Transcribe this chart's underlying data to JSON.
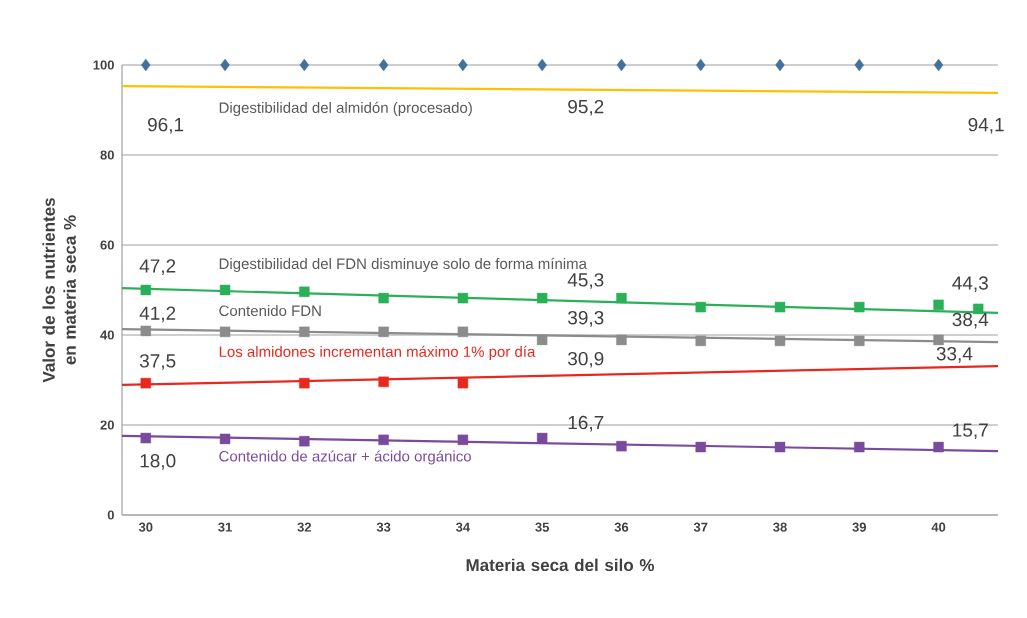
{
  "chart_data": {
    "type": "line",
    "xlabel": "Materia seca del silo %",
    "ylabel": "Valor de los nutrientes en materia seca %",
    "xlim": [
      29.7,
      40.75
    ],
    "xticks": [
      30,
      31,
      32,
      33,
      34,
      35,
      36,
      37,
      38,
      39,
      40
    ],
    "ylim": [
      0,
      100
    ],
    "yticks": [
      0,
      20,
      40,
      60,
      80,
      100
    ],
    "grid": "y",
    "series": [
      {
        "type": "scatter",
        "marker": "diamond",
        "color": "#41719c",
        "x": [
          30,
          31,
          32,
          33,
          34,
          35,
          36,
          37,
          38,
          39,
          40
        ],
        "values": [
          100,
          100,
          100,
          100,
          100,
          100,
          100,
          100,
          100,
          100,
          100
        ]
      },
      {
        "name": "Digestibilidad del almidón (procesado)",
        "color": "#ffc000",
        "x": [
          29.7,
          40.75
        ],
        "values": [
          95.3,
          93.8
        ]
      },
      {
        "type": "scatter",
        "marker": "square",
        "color": "#2bb05a",
        "x": [
          30,
          31,
          32,
          33,
          34,
          35,
          36,
          37,
          38,
          39,
          40,
          40.5
        ],
        "values": [
          50.0,
          50.0,
          49.6,
          48.2,
          48.2,
          48.2,
          48.2,
          46.2,
          46.2,
          46.2,
          46.7,
          45.8
        ]
      },
      {
        "name": "Digestibilidad del FDN disminuye solo de forma mínima",
        "color": "#2bb05a",
        "x": [
          29.7,
          40.75
        ],
        "values": [
          50.4,
          44.9
        ]
      },
      {
        "type": "scatter",
        "marker": "square",
        "color": "#8c8c8c",
        "x": [
          30,
          31,
          32,
          33,
          34,
          35,
          36,
          37,
          38,
          39,
          40
        ],
        "values": [
          40.9,
          40.7,
          40.7,
          40.7,
          40.7,
          38.9,
          38.9,
          38.7,
          38.7,
          38.7,
          38.9
        ]
      },
      {
        "name": "Contenido FDN",
        "color": "#8c8c8c",
        "x": [
          29.7,
          40.75
        ],
        "values": [
          41.3,
          38.4
        ]
      },
      {
        "type": "scatter",
        "marker": "square",
        "color": "#e8281e",
        "x": [
          30,
          32,
          33,
          34
        ],
        "values": [
          29.3,
          29.3,
          29.6,
          29.3
        ]
      },
      {
        "name": "Los almidones incrementan máximo 1% por día",
        "color": "#e8281e",
        "x": [
          29.7,
          40.75
        ],
        "values": [
          28.9,
          33.1
        ]
      },
      {
        "type": "scatter",
        "marker": "square",
        "color": "#7a4a9e",
        "x": [
          30,
          31,
          32,
          33,
          34,
          35,
          36,
          37,
          38,
          39,
          40
        ],
        "values": [
          17.1,
          16.9,
          16.4,
          16.7,
          16.7,
          17.1,
          15.3,
          15.1,
          15.1,
          15.1,
          15.1
        ]
      },
      {
        "name": "Contenido de azúcar + ácido orgánico",
        "color": "#7a4a9e",
        "x": [
          29.7,
          40.75
        ],
        "values": [
          17.6,
          14.2
        ]
      }
    ],
    "annotations": [
      "96,1",
      "95,2",
      "94,1",
      "47,2",
      "45,3",
      "44,3",
      "41,2",
      "39,3",
      "38,4",
      "37,5",
      "30,9",
      "33,4",
      "18,0",
      "16,7",
      "15,7"
    ]
  }
}
